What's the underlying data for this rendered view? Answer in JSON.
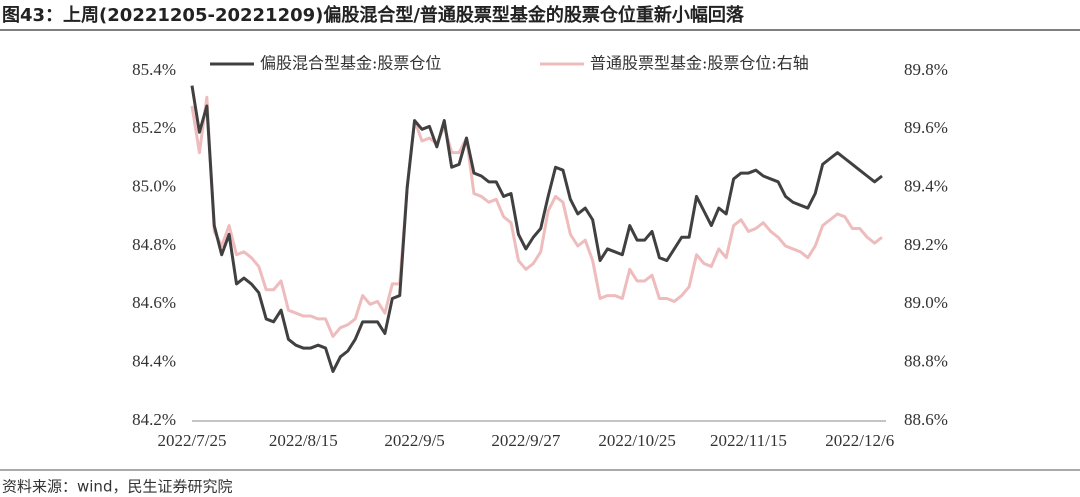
{
  "chart_data": {
    "type": "line",
    "title": "图43：上周(20221205-20221209)偏股混合型/普通股票型基金的股票仓位重新小幅回落",
    "source": "资料来源：wind，民生证券研究院",
    "categories": [
      "2022/7/25",
      null,
      null,
      null,
      null,
      null,
      null,
      null,
      null,
      null,
      null,
      null,
      null,
      null,
      null,
      "2022/8/15",
      null,
      null,
      null,
      null,
      null,
      null,
      null,
      null,
      null,
      null,
      null,
      null,
      null,
      null,
      "2022/9/5",
      null,
      null,
      null,
      null,
      null,
      null,
      null,
      null,
      null,
      null,
      null,
      null,
      null,
      null,
      "2022/9/27",
      null,
      null,
      null,
      null,
      null,
      null,
      null,
      null,
      null,
      null,
      null,
      null,
      null,
      null,
      "2022/10/25",
      null,
      null,
      null,
      null,
      null,
      null,
      null,
      null,
      null,
      null,
      null,
      null,
      null,
      null,
      "2022/11/15",
      null,
      null,
      null,
      null,
      null,
      null,
      null,
      null,
      null,
      null,
      null,
      null,
      null,
      null,
      "2022/12/6",
      null,
      null,
      null
    ],
    "series": [
      {
        "name": "偏股混合型基金:股票仓位",
        "color": "#404040",
        "axis": "y",
        "values": [
          85.35,
          85.19,
          85.28,
          84.87,
          84.77,
          84.84,
          84.67,
          84.69,
          84.67,
          84.64,
          84.55,
          84.54,
          84.58,
          84.48,
          84.46,
          84.45,
          84.45,
          84.46,
          84.45,
          84.37,
          84.42,
          84.44,
          84.48,
          84.54,
          84.54,
          84.54,
          84.5,
          84.62,
          84.63,
          85.0,
          85.23,
          85.2,
          85.21,
          85.14,
          85.23,
          85.07,
          85.08,
          85.17,
          85.05,
          85.04,
          85.02,
          85.02,
          84.97,
          84.98,
          84.84,
          84.79,
          84.83,
          84.86,
          84.97,
          85.07,
          85.06,
          84.96,
          84.91,
          84.93,
          84.89,
          84.75,
          84.79,
          84.78,
          84.77,
          84.87,
          84.82,
          84.82,
          84.85,
          84.76,
          84.75,
          84.79,
          84.83,
          84.83,
          84.97,
          84.92,
          84.87,
          84.93,
          84.91,
          85.03,
          85.05,
          85.05,
          85.06,
          85.04,
          85.03,
          85.02,
          84.97,
          84.95,
          84.94,
          84.93,
          84.98,
          85.08,
          85.1,
          85.12,
          85.1,
          85.08,
          85.06,
          85.04,
          85.02,
          85.04
        ]
      },
      {
        "name": "普通股票型基金:股票仓位:右轴",
        "color": "#eebcbc",
        "axis": "y2",
        "values": [
          89.68,
          89.52,
          89.71,
          89.25,
          89.2,
          89.27,
          89.17,
          89.18,
          89.16,
          89.13,
          89.05,
          89.05,
          89.08,
          88.98,
          88.97,
          88.96,
          88.96,
          88.95,
          88.95,
          88.89,
          88.92,
          88.93,
          88.95,
          89.03,
          89.0,
          89.01,
          88.97,
          89.07,
          89.07,
          89.4,
          89.63,
          89.56,
          89.57,
          89.55,
          89.61,
          89.52,
          89.52,
          89.57,
          89.38,
          89.37,
          89.35,
          89.36,
          89.3,
          89.28,
          89.15,
          89.12,
          89.14,
          89.18,
          89.32,
          89.37,
          89.35,
          89.24,
          89.2,
          89.22,
          89.15,
          89.02,
          89.03,
          89.03,
          89.02,
          89.12,
          89.08,
          89.08,
          89.1,
          89.02,
          89.02,
          89.01,
          89.03,
          89.06,
          89.17,
          89.14,
          89.13,
          89.19,
          89.16,
          89.27,
          89.29,
          89.25,
          89.26,
          89.28,
          89.25,
          89.23,
          89.2,
          89.19,
          89.18,
          89.16,
          89.2,
          89.27,
          89.29,
          89.31,
          89.3,
          89.26,
          89.26,
          89.23,
          89.21,
          89.23
        ]
      }
    ],
    "ylim": [
      84.2,
      85.4
    ],
    "yticks": [
      {
        "value": 84.2,
        "label": "84.2%"
      },
      {
        "value": 84.4,
        "label": "84.4%"
      },
      {
        "value": 84.6,
        "label": "84.6%"
      },
      {
        "value": 84.8,
        "label": "84.8%"
      },
      {
        "value": 85.0,
        "label": "85.0%"
      },
      {
        "value": 85.2,
        "label": "85.2%"
      },
      {
        "value": 85.4,
        "label": "85.4%"
      }
    ],
    "y2lim": [
      88.6,
      89.8
    ],
    "y2ticks": [
      {
        "value": 88.6,
        "label": "88.6%"
      },
      {
        "value": 88.8,
        "label": "88.8%"
      },
      {
        "value": 89.0,
        "label": "89.0%"
      },
      {
        "value": 89.2,
        "label": "89.2%"
      },
      {
        "value": 89.4,
        "label": "89.4%"
      },
      {
        "value": 89.6,
        "label": "89.6%"
      },
      {
        "value": 89.8,
        "label": "89.8%"
      }
    ],
    "grid": false,
    "legend": "top"
  }
}
